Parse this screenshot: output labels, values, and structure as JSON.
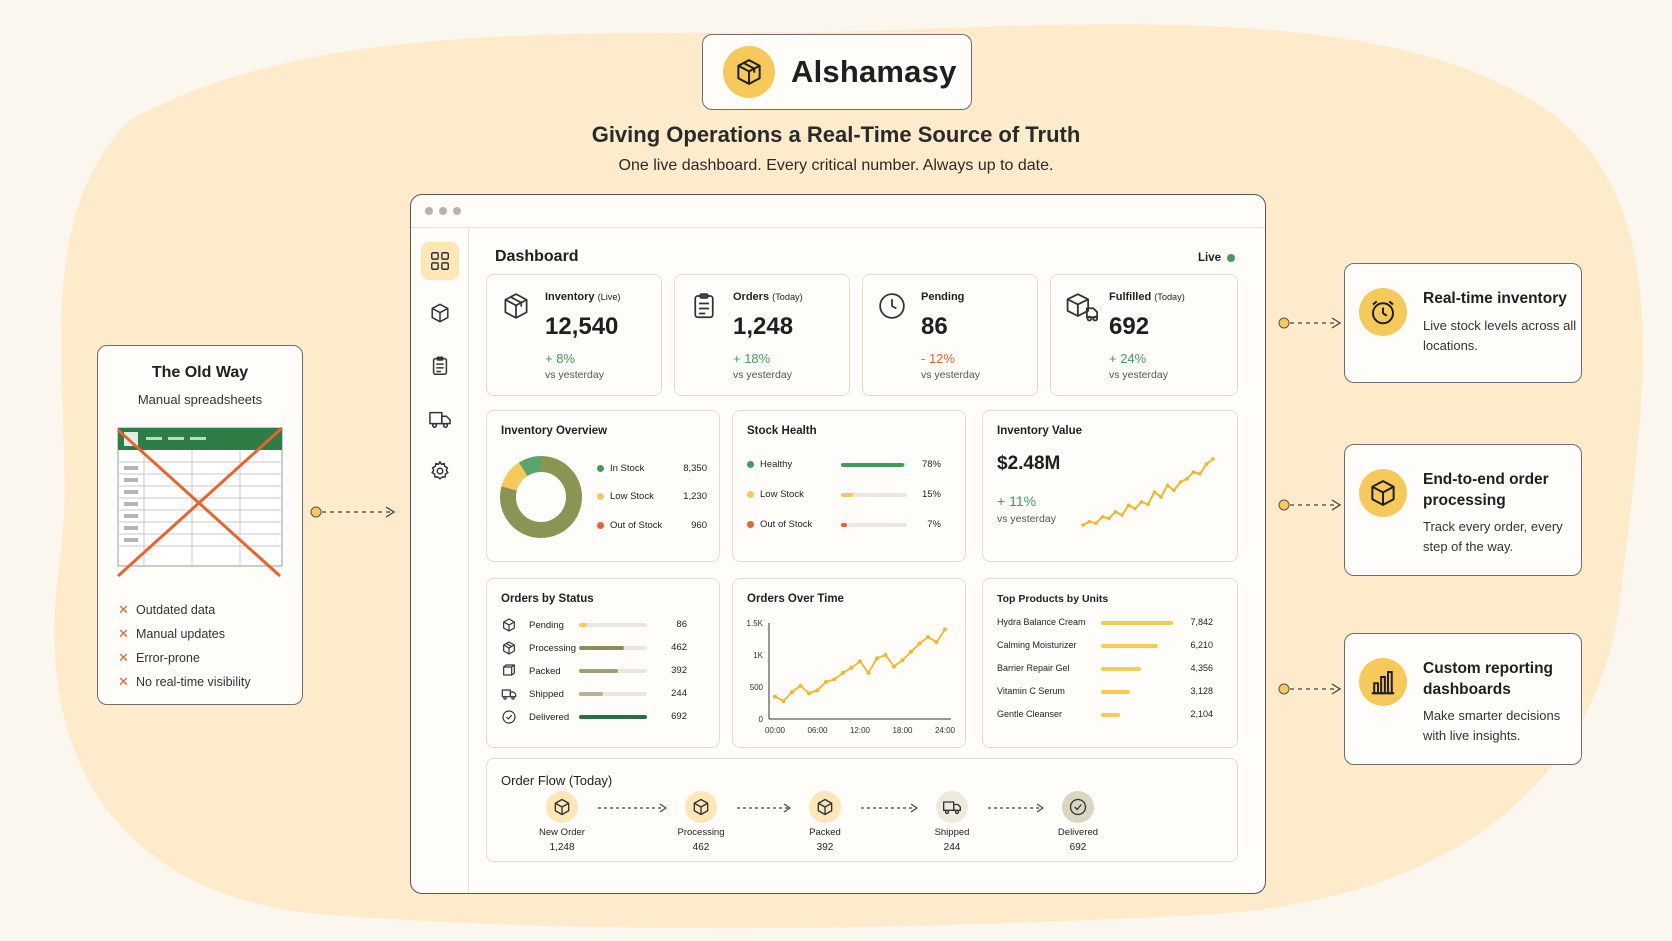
{
  "brand": {
    "name": "Alshamasy",
    "icon": "box-icon",
    "accent": "#f7c95a"
  },
  "headline": "Giving Operations a Real-Time Source of Truth",
  "subline": "One live dashboard. Every critical number. Always up to date.",
  "old_way": {
    "title": "The Old Way",
    "subtitle": "Manual spreadsheets",
    "items": [
      "Outdated data",
      "Manual updates",
      "Error-prone",
      "No real-time visibility"
    ]
  },
  "sidebar": {
    "items": [
      {
        "icon": "grid-icon",
        "active": true
      },
      {
        "icon": "box-icon",
        "active": false
      },
      {
        "icon": "clipboard-icon",
        "active": false
      },
      {
        "icon": "truck-icon",
        "active": false
      },
      {
        "icon": "gear-icon",
        "active": false
      }
    ]
  },
  "dashboard": {
    "title": "Dashboard",
    "live_label": "Live",
    "kpis": [
      {
        "label": "Inventory",
        "label_small": "(Live)",
        "value": "12,540",
        "delta": "+ 8%",
        "trend": "up",
        "sub": "vs yesterday",
        "icon": "box-icon"
      },
      {
        "label": "Orders",
        "label_small": "(Today)",
        "value": "1,248",
        "delta": "+ 18%",
        "trend": "up",
        "sub": "vs yesterday",
        "icon": "clipboard-icon"
      },
      {
        "label": "Pending",
        "label_small": "",
        "value": "86",
        "delta": "- 12%",
        "trend": "down",
        "sub": "vs yesterday",
        "icon": "clock-icon"
      },
      {
        "label": "Fulfilled",
        "label_small": "(Today)",
        "value": "692",
        "delta": "+ 24%",
        "trend": "up",
        "sub": "vs yesterday",
        "icon": "box-truck-icon"
      }
    ],
    "inventory_overview": {
      "title": "Inventory Overview",
      "rows": [
        {
          "label": "In Stock",
          "value": "8,350",
          "num": 8350,
          "color": "#7f8f4e"
        },
        {
          "label": "Low Stock",
          "value": "1,230",
          "num": 1230,
          "color": "#f7c95a"
        },
        {
          "label": "Out of Stock",
          "value": "960",
          "num": 960,
          "color": "#e8642c"
        }
      ]
    },
    "stock_health": {
      "title": "Stock Health",
      "rows": [
        {
          "label": "Healthy",
          "pct": "78%",
          "frac": 0.78,
          "color": "#3f9c5a"
        },
        {
          "label": "Low Stock",
          "pct": "15%",
          "frac": 0.15,
          "color": "#f7c95a"
        },
        {
          "label": "Out of Stock",
          "pct": "7%",
          "frac": 0.07,
          "color": "#e8642c"
        }
      ]
    },
    "inventory_value": {
      "title": "Inventory Value",
      "value": "$2.48M",
      "delta": "+ 11%",
      "sub": "vs yesterday",
      "spark": [
        10,
        14,
        12,
        20,
        18,
        26,
        22,
        34,
        30,
        38,
        35,
        50,
        44,
        58,
        52,
        62,
        66,
        74,
        72,
        84,
        90
      ]
    },
    "orders_by_status": {
      "title": "Orders by Status",
      "max": 692,
      "rows": [
        {
          "label": "Pending",
          "value": "86",
          "num": 86,
          "color": "#f7c95a",
          "icon": "box-icon"
        },
        {
          "label": "Processing",
          "value": "462",
          "num": 462,
          "color": "#8a8f5a",
          "icon": "cube-icon"
        },
        {
          "label": "Packed",
          "value": "392",
          "num": 392,
          "color": "#9aa07a",
          "icon": "package-icon"
        },
        {
          "label": "Shipped",
          "value": "244",
          "num": 244,
          "color": "#b6b48e",
          "icon": "truck-icon"
        },
        {
          "label": "Delivered",
          "value": "692",
          "num": 692,
          "color": "#2f6b45",
          "icon": "check-circle-icon"
        }
      ]
    },
    "orders_over_time": {
      "title": "Orders Over Time",
      "y_ticks": [
        "1.5K",
        "1K",
        "500",
        "0"
      ],
      "x_ticks": [
        "00:00",
        "06:00",
        "12:00",
        "18:00",
        "24:00"
      ],
      "ylim": [
        0,
        1500
      ],
      "values": [
        350,
        280,
        420,
        520,
        400,
        450,
        580,
        620,
        720,
        800,
        900,
        720,
        950,
        1000,
        820,
        920,
        1050,
        1180,
        1280,
        1200,
        1400
      ]
    },
    "top_products": {
      "title": "Top Products by Units",
      "max": 7842,
      "rows": [
        {
          "label": "Hydra Balance Cream",
          "value": "7,842",
          "num": 7842
        },
        {
          "label": "Calming Moisturizer",
          "value": "6,210",
          "num": 6210
        },
        {
          "label": "Barrier Repair Gel",
          "value": "4,356",
          "num": 4356
        },
        {
          "label": "Vitamin C Serum",
          "value": "3,128",
          "num": 3128
        },
        {
          "label": "Gentle Cleanser",
          "value": "2,104",
          "num": 2104
        }
      ]
    },
    "order_flow": {
      "title": "Order Flow (Today)",
      "steps": [
        {
          "label": "New Order",
          "value": "1,248",
          "icon": "box-icon"
        },
        {
          "label": "Processing",
          "value": "462",
          "icon": "box-icon"
        },
        {
          "label": "Packed",
          "value": "392",
          "icon": "box-icon"
        },
        {
          "label": "Shipped",
          "value": "244",
          "icon": "truck-icon"
        },
        {
          "label": "Delivered",
          "value": "692",
          "icon": "check-circle-icon"
        }
      ]
    }
  },
  "features": [
    {
      "title": "Real-time inventory",
      "desc": "Live stock levels across all locations.",
      "icon": "clock-icon"
    },
    {
      "title": "End-to-end order processing",
      "desc": "Track every order, every step of the way.",
      "icon": "box-icon"
    },
    {
      "title": "Custom reporting dashboards",
      "desc": "Make smarter decisions with live insights.",
      "icon": "bar-chart-icon"
    }
  ]
}
